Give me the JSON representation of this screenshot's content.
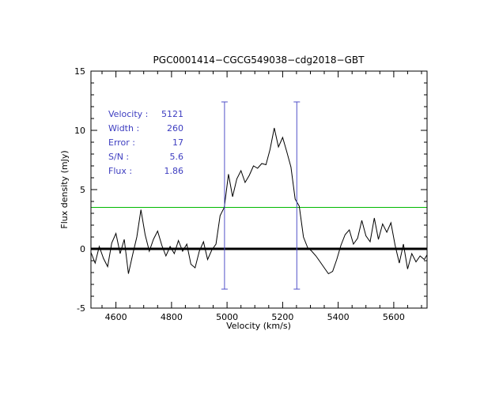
{
  "chart_data": {
    "type": "line",
    "title": "PGC0001414−CGCG549038−cdg2018−GBT",
    "xlabel": "Velocity (km/s)",
    "ylabel": "Flux density (mJy)",
    "xlim": [
      4510,
      5720
    ],
    "ylim": [
      -5,
      15
    ],
    "xticks": [
      4600,
      4800,
      5000,
      5200,
      5400,
      5600
    ],
    "yticks": [
      -5,
      0,
      5,
      10,
      15
    ],
    "xtick_minor_step": 50,
    "ytick_minor_step": 1,
    "grid": false,
    "line_color": "#000000",
    "annotation_color": "#3d3dc0",
    "baseline": {
      "y": 0,
      "color": "#000000"
    },
    "threshold_line": {
      "y": 3.5,
      "color": "#00b800"
    },
    "markers": {
      "x": [
        4991,
        5251
      ],
      "y_bottom": -3.4,
      "y_top": 12.4,
      "color": "#5151c8"
    },
    "annotations": [
      {
        "label": "Velocity :",
        "value": "5121"
      },
      {
        "label": "Width :",
        "value": "260"
      },
      {
        "label": "Error :",
        "value": "17"
      },
      {
        "label": "S/N :",
        "value": "5.6"
      },
      {
        "label": "Flux :",
        "value": "1.86"
      }
    ],
    "series": [
      {
        "name": "spectrum",
        "x": [
          4510,
          4525,
          4540,
          4555,
          4570,
          4585,
          4600,
          4615,
          4630,
          4645,
          4660,
          4675,
          4690,
          4705,
          4720,
          4735,
          4750,
          4765,
          4780,
          4795,
          4810,
          4825,
          4840,
          4855,
          4870,
          4885,
          4900,
          4915,
          4930,
          4945,
          4960,
          4975,
          4990,
          5005,
          5020,
          5035,
          5050,
          5065,
          5080,
          5095,
          5110,
          5125,
          5140,
          5155,
          5170,
          5185,
          5200,
          5215,
          5230,
          5245,
          5260,
          5275,
          5290,
          5305,
          5320,
          5335,
          5350,
          5365,
          5380,
          5395,
          5410,
          5425,
          5440,
          5455,
          5470,
          5485,
          5500,
          5515,
          5530,
          5545,
          5560,
          5575,
          5590,
          5605,
          5620,
          5635,
          5650,
          5665,
          5680,
          5695,
          5710,
          5720
        ],
        "y": [
          -0.3,
          -1.2,
          0.2,
          -0.8,
          -1.5,
          0.5,
          1.3,
          -0.4,
          0.8,
          -2.1,
          -0.5,
          1.0,
          3.3,
          1.2,
          -0.2,
          0.8,
          1.5,
          0.3,
          -0.6,
          0.2,
          -0.4,
          0.7,
          -0.2,
          0.4,
          -1.3,
          -1.6,
          -0.2,
          0.6,
          -0.9,
          -0.1,
          0.4,
          2.8,
          3.5,
          6.3,
          4.4,
          5.9,
          6.6,
          5.6,
          6.2,
          7.0,
          6.8,
          7.2,
          7.1,
          8.4,
          10.2,
          8.6,
          9.4,
          8.2,
          6.9,
          4.2,
          3.6,
          1.0,
          0.1,
          -0.2,
          -0.6,
          -1.1,
          -1.6,
          -2.1,
          -1.9,
          -0.9,
          0.3,
          1.2,
          1.6,
          0.4,
          0.9,
          2.4,
          1.1,
          0.6,
          2.6,
          0.8,
          2.1,
          1.4,
          2.2,
          0.3,
          -1.2,
          0.4,
          -1.7,
          -0.4,
          -1.1,
          -0.6,
          -0.9,
          -0.5
        ]
      }
    ]
  }
}
